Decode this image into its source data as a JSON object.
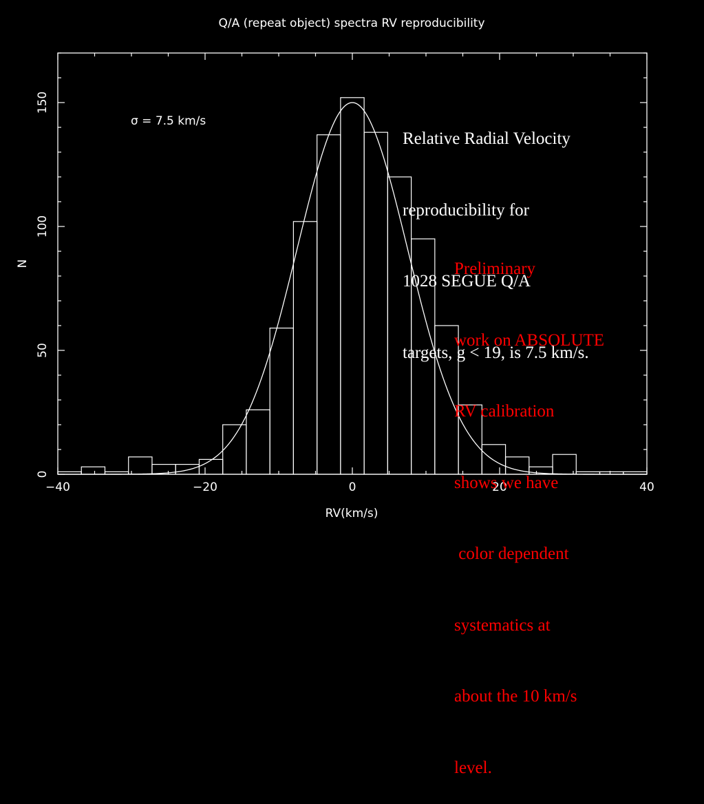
{
  "chart_data": {
    "type": "bar",
    "title": "Q/A (repeat object) spectra RV reproducibility",
    "xlabel": "RV(km/s)",
    "ylabel": "N",
    "xlim": [
      -40,
      40
    ],
    "ylim": [
      0,
      170
    ],
    "xticks": [
      -40,
      -20,
      0,
      20,
      40
    ],
    "xtick_labels": [
      "−40",
      "−20",
      "0",
      "20",
      "40"
    ],
    "yticks": [
      0,
      50,
      100,
      150
    ],
    "ytick_labels": [
      "0",
      "50",
      "100",
      "150"
    ],
    "annotation": "σ = 7.5 km/s",
    "grid": false,
    "colors": {
      "background": "#000000",
      "foreground": "#ffffff",
      "highlight": "#ff0000"
    },
    "bins": {
      "left_edges": [
        -40.0,
        -36.8,
        -33.6,
        -30.4,
        -27.2,
        -24.0,
        -20.8,
        -17.6,
        -14.4,
        -11.2,
        -8.0,
        -4.8,
        -1.6,
        1.6,
        4.8,
        8.0,
        11.2,
        14.4,
        17.6,
        20.8,
        24.0,
        27.2,
        30.4,
        33.6,
        36.8
      ],
      "width": 3.2,
      "values": [
        1,
        3,
        1,
        7,
        4,
        4,
        6,
        20,
        26,
        59,
        102,
        137,
        152,
        138,
        120,
        95,
        60,
        28,
        12,
        7,
        3,
        8,
        1,
        1,
        1
      ]
    },
    "fit": {
      "type": "gaussian",
      "mean": 0,
      "sigma": 7.5,
      "amplitude": 150
    }
  },
  "notes": {
    "main_lines": [
      "Relative Radial Velocity",
      "reproducibility for",
      "1028 SEGUE Q/A",
      "targets, g < 19, is 7.5 km/s."
    ],
    "red_lines": [
      "Preliminary",
      "work on ABSOLUTE",
      "RV calibration",
      "shows we have",
      " color dependent",
      "systematics at",
      "about the 10 km/s",
      "level."
    ]
  }
}
